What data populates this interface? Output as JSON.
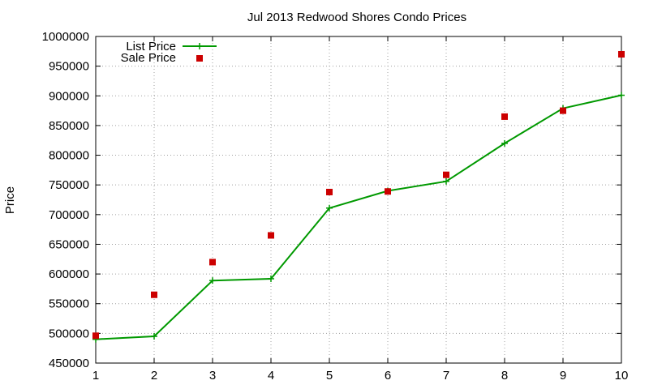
{
  "chart_data": {
    "type": "line",
    "title": "Jul 2013 Redwood Shores Condo Prices",
    "xlabel": "",
    "ylabel": "Price",
    "xlim": [
      1,
      10
    ],
    "ylim": [
      450000,
      1000000
    ],
    "x_ticks": [
      "1",
      "2",
      "3",
      "4",
      "5",
      "6",
      "7",
      "8",
      "9",
      "10"
    ],
    "y_ticks": [
      "450000",
      "500000",
      "550000",
      "600000",
      "650000",
      "700000",
      "750000",
      "800000",
      "850000",
      "900000",
      "950000",
      "1000000"
    ],
    "grid": true,
    "legend_position": "top-left",
    "x": [
      1,
      2,
      3,
      4,
      5,
      6,
      7,
      8,
      9,
      10
    ],
    "series": [
      {
        "name": "List Price",
        "style": "line-with-crosses",
        "color": "#009900",
        "values": [
          490000,
          495000,
          589000,
          592000,
          711000,
          740000,
          756000,
          820000,
          879000,
          901000
        ]
      },
      {
        "name": "Sale Price",
        "style": "square-markers",
        "color": "#cc0000",
        "values": [
          496000,
          565000,
          620000,
          665000,
          738000,
          739000,
          767000,
          865000,
          875000,
          970000
        ]
      }
    ]
  }
}
